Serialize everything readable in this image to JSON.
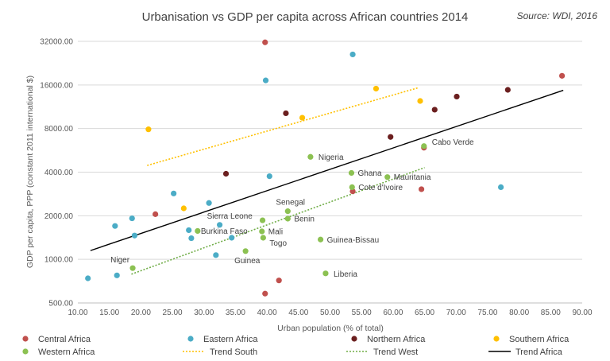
{
  "chart_data": {
    "type": "scatter",
    "title": "Urbanisation vs GDP per capita across African countries 2014",
    "source": "Source: WDI, 2016",
    "xlabel": "Urban population (% of total)",
    "ylabel": "GDP per capita, PPP (constant 2011 international $)",
    "xlim": [
      10,
      90
    ],
    "ylim": [
      500,
      40000
    ],
    "yscale": "log2",
    "x_ticks": [
      10,
      15,
      20,
      25,
      30,
      35,
      40,
      45,
      50,
      55,
      60,
      65,
      70,
      75,
      80,
      85,
      90
    ],
    "x_tick_labels": [
      "10.00",
      "15.00",
      "20.00",
      "25.00",
      "30.00",
      "35.00",
      "40.00",
      "45.00",
      "50.00",
      "55.00",
      "60.00",
      "65.00",
      "70.00",
      "75.00",
      "80.00",
      "85.00",
      "90.00"
    ],
    "y_ticks": [
      500,
      1000,
      2000,
      4000,
      8000,
      16000,
      32000
    ],
    "y_tick_labels": [
      "500.00",
      "1000.00",
      "2000.00",
      "4000.00",
      "8000.00",
      "16000.00",
      "32000.00"
    ],
    "grid": "horizontal",
    "legend_position": "bottom",
    "series": [
      {
        "name": "Central Africa",
        "color": "#c0504d",
        "points": [
          {
            "x": 22.3,
            "y": 2050
          },
          {
            "x": 39.7,
            "y": 31500
          },
          {
            "x": 39.7,
            "y": 580
          },
          {
            "x": 41.9,
            "y": 715
          },
          {
            "x": 53.6,
            "y": 2950
          },
          {
            "x": 64.5,
            "y": 3050
          },
          {
            "x": 64.9,
            "y": 5900
          },
          {
            "x": 86.8,
            "y": 18500
          }
        ]
      },
      {
        "name": "Eastern Africa",
        "color": "#4bacc6",
        "points": [
          {
            "x": 11.6,
            "y": 740
          },
          {
            "x": 15.9,
            "y": 1700
          },
          {
            "x": 16.2,
            "y": 775
          },
          {
            "x": 18.6,
            "y": 1920
          },
          {
            "x": 19.0,
            "y": 1460
          },
          {
            "x": 25.2,
            "y": 2850
          },
          {
            "x": 27.6,
            "y": 1590
          },
          {
            "x": 28.0,
            "y": 1400
          },
          {
            "x": 30.8,
            "y": 2450
          },
          {
            "x": 31.9,
            "y": 1070
          },
          {
            "x": 32.5,
            "y": 1730
          },
          {
            "x": 34.4,
            "y": 1410
          },
          {
            "x": 39.8,
            "y": 17200
          },
          {
            "x": 40.4,
            "y": 3750
          },
          {
            "x": 53.6,
            "y": 26000
          },
          {
            "x": 77.1,
            "y": 3150
          }
        ]
      },
      {
        "name": "Northern Africa",
        "color": "#6b1f1f",
        "points": [
          {
            "x": 33.5,
            "y": 3900
          },
          {
            "x": 43.0,
            "y": 10200
          },
          {
            "x": 59.6,
            "y": 7000
          },
          {
            "x": 66.6,
            "y": 10800
          },
          {
            "x": 70.1,
            "y": 13300
          },
          {
            "x": 78.2,
            "y": 14800
          }
        ]
      },
      {
        "name": "Southern Africa",
        "color": "#ffc000",
        "points": [
          {
            "x": 21.2,
            "y": 7900
          },
          {
            "x": 26.8,
            "y": 2250
          },
          {
            "x": 45.6,
            "y": 9500
          },
          {
            "x": 57.3,
            "y": 15100
          },
          {
            "x": 64.3,
            "y": 12400
          }
        ]
      },
      {
        "name": "Western Africa",
        "color": "#8cc152",
        "points": [
          {
            "x": 18.7,
            "y": 870,
            "label": "Niger"
          },
          {
            "x": 29.0,
            "y": 1570,
            "label": "Burkina Faso"
          },
          {
            "x": 36.6,
            "y": 1140,
            "label": "Guinea"
          },
          {
            "x": 39.3,
            "y": 1860,
            "label": "Sierra Leone"
          },
          {
            "x": 39.2,
            "y": 1560,
            "label": "Mali"
          },
          {
            "x": 39.4,
            "y": 1410,
            "label": "Togo"
          },
          {
            "x": 43.3,
            "y": 2150,
            "label": "Senegal"
          },
          {
            "x": 43.3,
            "y": 1910,
            "label": "Benin"
          },
          {
            "x": 46.9,
            "y": 5100,
            "label": "Nigeria"
          },
          {
            "x": 48.5,
            "y": 1370,
            "label": "Guinea-Bissau"
          },
          {
            "x": 49.3,
            "y": 800,
            "label": "Liberia"
          },
          {
            "x": 53.4,
            "y": 3950,
            "label": "Ghana"
          },
          {
            "x": 53.5,
            "y": 3150,
            "label": "Cote d'Ivoire"
          },
          {
            "x": 59.1,
            "y": 3700,
            "label": "Mauritania"
          },
          {
            "x": 64.9,
            "y": 6050,
            "label": "Cabo Verde"
          }
        ]
      }
    ],
    "trendlines": [
      {
        "name": "Trend South",
        "color": "#ffc000",
        "dash": "2,2",
        "from": {
          "x": 21.0,
          "y": 4450
        },
        "to": {
          "x": 64.0,
          "y": 15300
        }
      },
      {
        "name": "Trend West",
        "color": "#70ad47",
        "dash": "2,2",
        "from": {
          "x": 18.5,
          "y": 790
        },
        "to": {
          "x": 65.0,
          "y": 4300
        }
      },
      {
        "name": "Trend Africa",
        "color": "#000000",
        "dash": "",
        "from": {
          "x": 12.0,
          "y": 1150
        },
        "to": {
          "x": 87.0,
          "y": 14700
        }
      }
    ],
    "legend": [
      {
        "name": "Central Africa",
        "kind": "marker",
        "color": "#c0504d"
      },
      {
        "name": "Eastern Africa",
        "kind": "marker",
        "color": "#4bacc6"
      },
      {
        "name": "Northern Africa",
        "kind": "marker",
        "color": "#6b1f1f"
      },
      {
        "name": "Southern Africa",
        "kind": "marker",
        "color": "#ffc000"
      },
      {
        "name": "Western Africa",
        "kind": "marker",
        "color": "#8cc152"
      },
      {
        "name": "Trend South",
        "kind": "line",
        "color": "#ffc000",
        "dash": "2,2"
      },
      {
        "name": "Trend West",
        "kind": "line",
        "color": "#70ad47",
        "dash": "2,2"
      },
      {
        "name": "Trend Africa",
        "kind": "line",
        "color": "#000000",
        "dash": ""
      }
    ]
  }
}
